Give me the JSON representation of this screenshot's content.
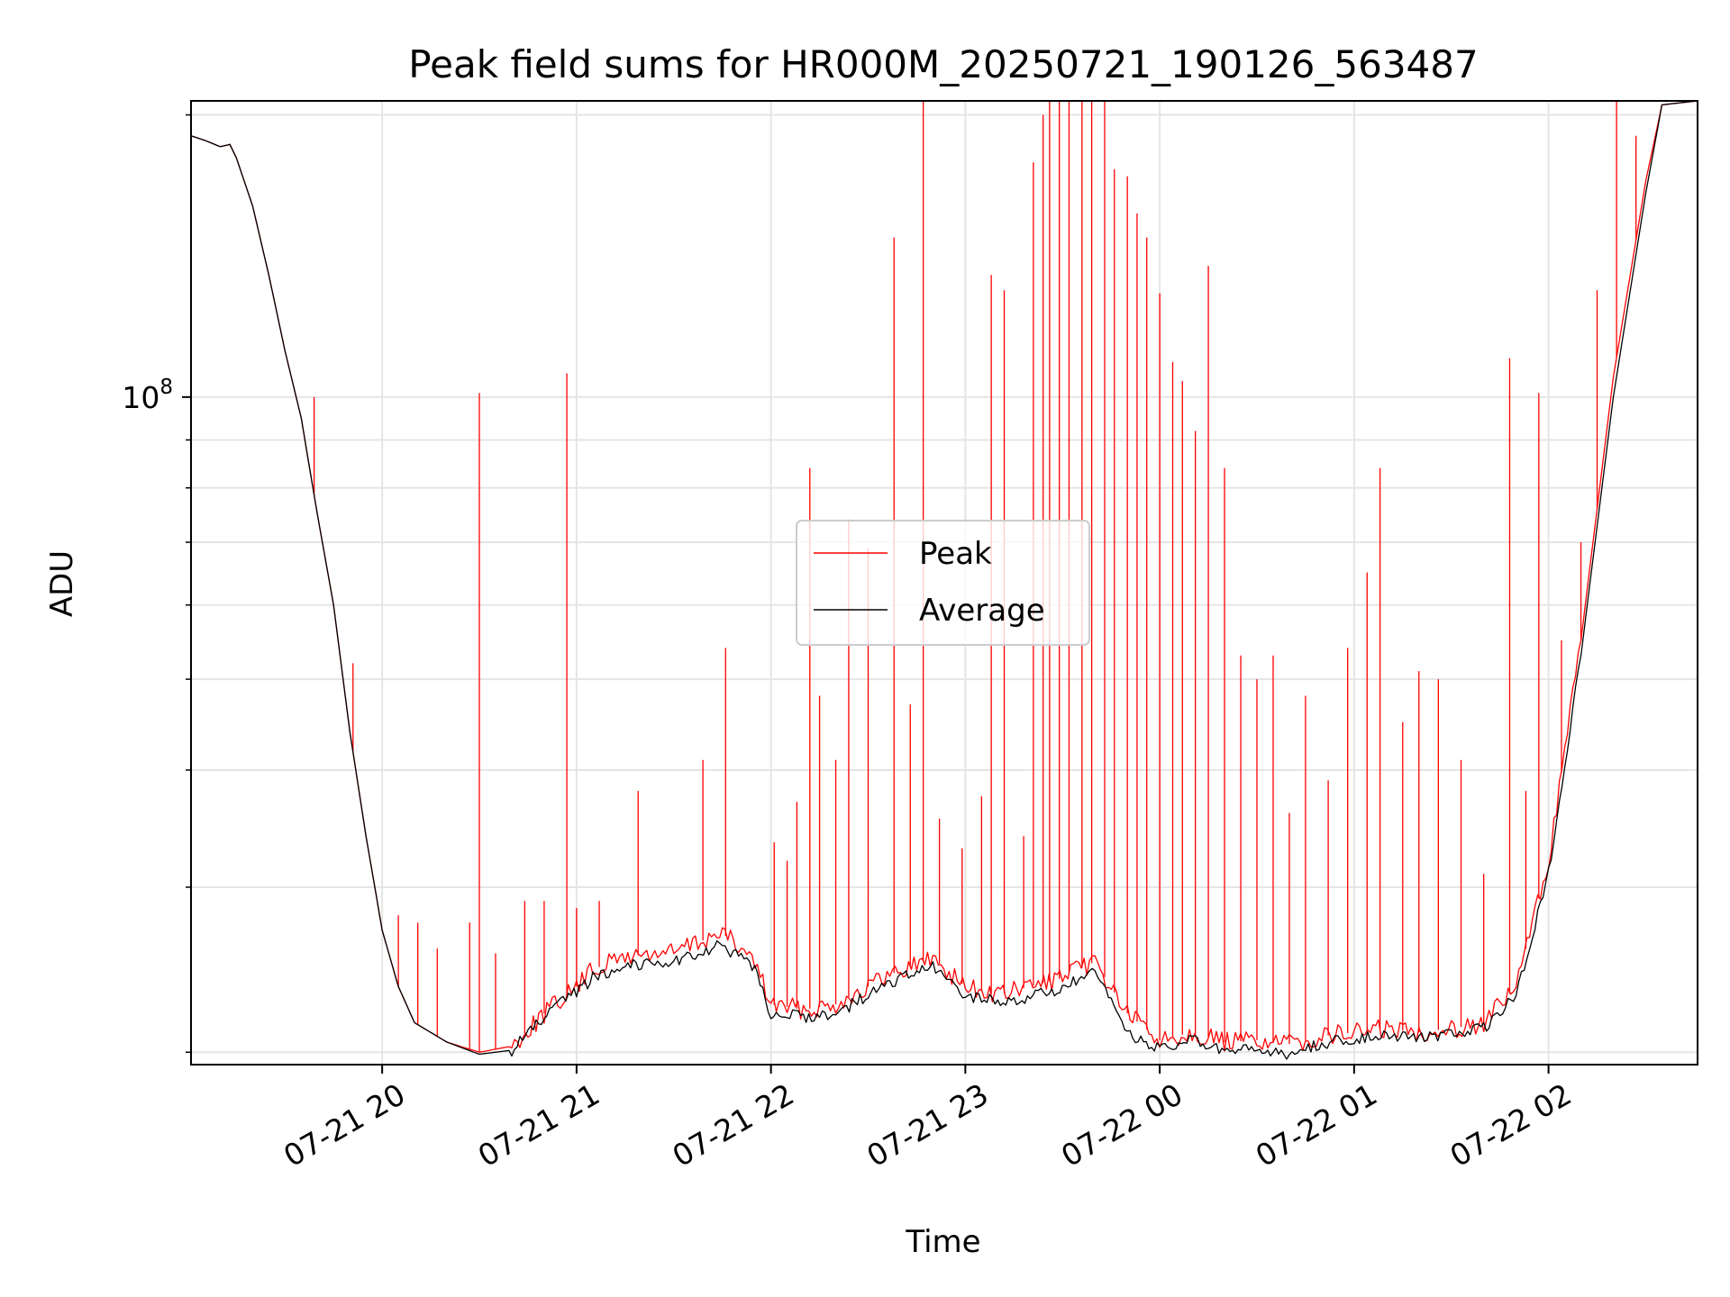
{
  "chart_data": {
    "type": "line",
    "title": "Peak field sums for HR000M_20250721_190126_563487",
    "xlabel": "Time",
    "ylabel": "ADU",
    "y_scale": "log",
    "ylim": [
      19400000,
      207000000
    ],
    "xlim": [
      "2025-07-21 19:01",
      "2025-07-22 02:46"
    ],
    "x_ticks": [
      {
        "time": "2025-07-21 20:00",
        "label": "07-21 20"
      },
      {
        "time": "2025-07-21 21:00",
        "label": "07-21 21"
      },
      {
        "time": "2025-07-21 22:00",
        "label": "07-21 22"
      },
      {
        "time": "2025-07-21 23:00",
        "label": "07-21 23"
      },
      {
        "time": "2025-07-22 00:00",
        "label": "07-22 00"
      },
      {
        "time": "2025-07-22 01:00",
        "label": "07-22 01"
      },
      {
        "time": "2025-07-22 02:00",
        "label": "07-22 02"
      }
    ],
    "y_ticks": [
      {
        "value": 100000000,
        "base": "10",
        "exponent": "8"
      }
    ],
    "y_minor_ticks": [
      20000000,
      30000000,
      40000000,
      50000000,
      60000000,
      70000000,
      80000000,
      90000000,
      200000000
    ],
    "grid": true,
    "legend_position": "center",
    "series": [
      {
        "name": "Peak",
        "color": "#ff0000",
        "baseline": [
          [
            "2025-07-21 19:01",
            190000000
          ],
          [
            "2025-07-21 19:05",
            188000000
          ],
          [
            "2025-07-21 19:10",
            185000000
          ],
          [
            "2025-07-21 19:13",
            186000000
          ],
          [
            "2025-07-21 19:15",
            180000000
          ],
          [
            "2025-07-21 19:20",
            160000000
          ],
          [
            "2025-07-21 19:25",
            135000000
          ],
          [
            "2025-07-21 19:30",
            112000000
          ],
          [
            "2025-07-21 19:35",
            95000000
          ],
          [
            "2025-07-21 19:40",
            75000000
          ],
          [
            "2025-07-21 19:45",
            60000000
          ],
          [
            "2025-07-21 19:50",
            44000000
          ],
          [
            "2025-07-21 19:55",
            34000000
          ],
          [
            "2025-07-21 20:00",
            27000000
          ],
          [
            "2025-07-21 20:05",
            23500000
          ],
          [
            "2025-07-21 20:10",
            21500000
          ],
          [
            "2025-07-21 20:20",
            20500000
          ],
          [
            "2025-07-21 20:30",
            20000000
          ],
          [
            "2025-07-21 20:40",
            20300000
          ],
          [
            "2025-07-21 20:50",
            22000000
          ],
          [
            "2025-07-21 21:00",
            23500000
          ],
          [
            "2025-07-21 21:05",
            24500000
          ],
          [
            "2025-07-21 21:15",
            25300000
          ],
          [
            "2025-07-21 21:30",
            25600000
          ],
          [
            "2025-07-21 21:45",
            26800000
          ],
          [
            "2025-07-21 21:55",
            25000000
          ],
          [
            "2025-07-21 22:00",
            22500000
          ],
          [
            "2025-07-21 22:10",
            22200000
          ],
          [
            "2025-07-21 22:20",
            22500000
          ],
          [
            "2025-07-21 22:30",
            23500000
          ],
          [
            "2025-07-21 22:40",
            24500000
          ],
          [
            "2025-07-21 22:50",
            25200000
          ],
          [
            "2025-07-21 23:00",
            23500000
          ],
          [
            "2025-07-21 23:10",
            23000000
          ],
          [
            "2025-07-21 23:20",
            23500000
          ],
          [
            "2025-07-21 23:30",
            24000000
          ],
          [
            "2025-07-21 23:40",
            25000000
          ],
          [
            "2025-07-21 23:50",
            22000000
          ],
          [
            "2025-07-22 00:00",
            20600000
          ],
          [
            "2025-07-22 00:10",
            21000000
          ],
          [
            "2025-07-22 00:20",
            20500000
          ],
          [
            "2025-07-22 00:30",
            20600000
          ],
          [
            "2025-07-22 00:40",
            20400000
          ],
          [
            "2025-07-22 00:50",
            20800000
          ],
          [
            "2025-07-22 01:00",
            21000000
          ],
          [
            "2025-07-22 01:10",
            21200000
          ],
          [
            "2025-07-22 01:20",
            21000000
          ],
          [
            "2025-07-22 01:30",
            21200000
          ],
          [
            "2025-07-22 01:40",
            21500000
          ],
          [
            "2025-07-22 01:50",
            23500000
          ],
          [
            "2025-07-22 02:00",
            32000000
          ],
          [
            "2025-07-22 02:10",
            55000000
          ],
          [
            "2025-07-22 02:20",
            105000000
          ],
          [
            "2025-07-22 02:30",
            170000000
          ],
          [
            "2025-07-22 02:35",
            205000000
          ],
          [
            "2025-07-22 02:46",
            207000000
          ]
        ],
        "spikes": [
          [
            "2025-07-21 19:39",
            100000000
          ],
          [
            "2025-07-21 19:51",
            52000000
          ],
          [
            "2025-07-21 20:05",
            28000000
          ],
          [
            "2025-07-21 20:11",
            27500000
          ],
          [
            "2025-07-21 20:17",
            25800000
          ],
          [
            "2025-07-21 20:27",
            27500000
          ],
          [
            "2025-07-21 20:30",
            101000000
          ],
          [
            "2025-07-21 20:35",
            25500000
          ],
          [
            "2025-07-21 20:44",
            29000000
          ],
          [
            "2025-07-21 20:50",
            29000000
          ],
          [
            "2025-07-21 20:57",
            106000000
          ],
          [
            "2025-07-21 21:00",
            28500000
          ],
          [
            "2025-07-21 21:07",
            29000000
          ],
          [
            "2025-07-21 21:19",
            38000000
          ],
          [
            "2025-07-21 21:39",
            41000000
          ],
          [
            "2025-07-21 21:46",
            54000000
          ],
          [
            "2025-07-21 22:01",
            33500000
          ],
          [
            "2025-07-21 22:05",
            32000000
          ],
          [
            "2025-07-21 22:08",
            37000000
          ],
          [
            "2025-07-21 22:12",
            84000000
          ],
          [
            "2025-07-21 22:15",
            48000000
          ],
          [
            "2025-07-21 22:20",
            41000000
          ],
          [
            "2025-07-21 22:24",
            74000000
          ],
          [
            "2025-07-21 22:30",
            69000000
          ],
          [
            "2025-07-21 22:38",
            148000000
          ],
          [
            "2025-07-21 22:43",
            47000000
          ],
          [
            "2025-07-21 22:47",
            207000000
          ],
          [
            "2025-07-21 22:52",
            35500000
          ],
          [
            "2025-07-21 22:59",
            33000000
          ],
          [
            "2025-07-21 23:05",
            37500000
          ],
          [
            "2025-07-21 23:08",
            135000000
          ],
          [
            "2025-07-21 23:12",
            130000000
          ],
          [
            "2025-07-21 23:18",
            34000000
          ],
          [
            "2025-07-21 23:21",
            178000000
          ],
          [
            "2025-07-21 23:24",
            200000000
          ],
          [
            "2025-07-21 23:26",
            207000000
          ],
          [
            "2025-07-21 23:29",
            207000000
          ],
          [
            "2025-07-21 23:32",
            207000000
          ],
          [
            "2025-07-21 23:36",
            207000000
          ],
          [
            "2025-07-21 23:39",
            207000000
          ],
          [
            "2025-07-21 23:43",
            207000000
          ],
          [
            "2025-07-21 23:46",
            175000000
          ],
          [
            "2025-07-21 23:50",
            172000000
          ],
          [
            "2025-07-21 23:53",
            157000000
          ],
          [
            "2025-07-21 23:56",
            148000000
          ],
          [
            "2025-07-22 00:00",
            129000000
          ],
          [
            "2025-07-22 00:04",
            109000000
          ],
          [
            "2025-07-22 00:07",
            104000000
          ],
          [
            "2025-07-22 00:11",
            92000000
          ],
          [
            "2025-07-22 00:15",
            138000000
          ],
          [
            "2025-07-22 00:20",
            84000000
          ],
          [
            "2025-07-22 00:25",
            53000000
          ],
          [
            "2025-07-22 00:30",
            50000000
          ],
          [
            "2025-07-22 00:35",
            53000000
          ],
          [
            "2025-07-22 00:40",
            36000000
          ],
          [
            "2025-07-22 00:45",
            48000000
          ],
          [
            "2025-07-22 00:52",
            39000000
          ],
          [
            "2025-07-22 00:58",
            54000000
          ],
          [
            "2025-07-22 01:04",
            65000000
          ],
          [
            "2025-07-22 01:08",
            84000000
          ],
          [
            "2025-07-22 01:15",
            45000000
          ],
          [
            "2025-07-22 01:20",
            51000000
          ],
          [
            "2025-07-22 01:26",
            50000000
          ],
          [
            "2025-07-22 01:33",
            41000000
          ],
          [
            "2025-07-22 01:40",
            31000000
          ],
          [
            "2025-07-22 01:48",
            110000000
          ],
          [
            "2025-07-22 01:53",
            38000000
          ],
          [
            "2025-07-22 01:57",
            101000000
          ],
          [
            "2025-07-22 02:04",
            55000000
          ],
          [
            "2025-07-22 02:10",
            70000000
          ],
          [
            "2025-07-22 02:15",
            130000000
          ],
          [
            "2025-07-22 02:21",
            207000000
          ],
          [
            "2025-07-22 02:27",
            190000000
          ]
        ]
      },
      {
        "name": "Average",
        "color": "#000000",
        "baseline": [
          [
            "2025-07-21 19:01",
            190000000
          ],
          [
            "2025-07-21 19:05",
            188000000
          ],
          [
            "2025-07-21 19:10",
            185000000
          ],
          [
            "2025-07-21 19:13",
            186000000
          ],
          [
            "2025-07-21 19:15",
            180000000
          ],
          [
            "2025-07-21 19:20",
            160000000
          ],
          [
            "2025-07-21 19:25",
            135000000
          ],
          [
            "2025-07-21 19:30",
            112000000
          ],
          [
            "2025-07-21 19:35",
            95000000
          ],
          [
            "2025-07-21 19:40",
            75000000
          ],
          [
            "2025-07-21 19:45",
            60000000
          ],
          [
            "2025-07-21 19:50",
            44000000
          ],
          [
            "2025-07-21 19:55",
            34000000
          ],
          [
            "2025-07-21 20:00",
            27000000
          ],
          [
            "2025-07-21 20:05",
            23500000
          ],
          [
            "2025-07-21 20:10",
            21500000
          ],
          [
            "2025-07-21 20:20",
            20500000
          ],
          [
            "2025-07-21 20:30",
            19900000
          ],
          [
            "2025-07-21 20:40",
            20100000
          ],
          [
            "2025-07-21 20:50",
            21800000
          ],
          [
            "2025-07-21 21:00",
            23200000
          ],
          [
            "2025-07-21 21:05",
            24000000
          ],
          [
            "2025-07-21 21:15",
            24800000
          ],
          [
            "2025-07-21 21:30",
            25000000
          ],
          [
            "2025-07-21 21:45",
            26000000
          ],
          [
            "2025-07-21 21:55",
            24500000
          ],
          [
            "2025-07-21 22:00",
            22000000
          ],
          [
            "2025-07-21 22:10",
            21800000
          ],
          [
            "2025-07-21 22:20",
            22000000
          ],
          [
            "2025-07-21 22:30",
            23000000
          ],
          [
            "2025-07-21 22:40",
            24000000
          ],
          [
            "2025-07-21 22:50",
            24600000
          ],
          [
            "2025-07-21 23:00",
            23000000
          ],
          [
            "2025-07-21 23:10",
            22600000
          ],
          [
            "2025-07-21 23:20",
            22900000
          ],
          [
            "2025-07-21 23:30",
            23400000
          ],
          [
            "2025-07-21 23:40",
            24300000
          ],
          [
            "2025-07-21 23:50",
            21000000
          ],
          [
            "2025-07-22 00:00",
            20100000
          ],
          [
            "2025-07-22 00:10",
            20600000
          ],
          [
            "2025-07-22 00:20",
            20000000
          ],
          [
            "2025-07-22 00:30",
            20100000
          ],
          [
            "2025-07-22 00:40",
            19900000
          ],
          [
            "2025-07-22 00:50",
            20400000
          ],
          [
            "2025-07-22 01:00",
            20700000
          ],
          [
            "2025-07-22 01:10",
            20900000
          ],
          [
            "2025-07-22 01:20",
            20700000
          ],
          [
            "2025-07-22 01:30",
            20900000
          ],
          [
            "2025-07-22 01:40",
            21200000
          ],
          [
            "2025-07-22 01:50",
            23000000
          ],
          [
            "2025-07-22 02:00",
            31000000
          ],
          [
            "2025-07-22 02:10",
            53000000
          ],
          [
            "2025-07-22 02:20",
            100000000
          ],
          [
            "2025-07-22 02:30",
            165000000
          ],
          [
            "2025-07-22 02:35",
            205000000
          ],
          [
            "2025-07-22 02:46",
            207000000
          ]
        ]
      }
    ]
  }
}
